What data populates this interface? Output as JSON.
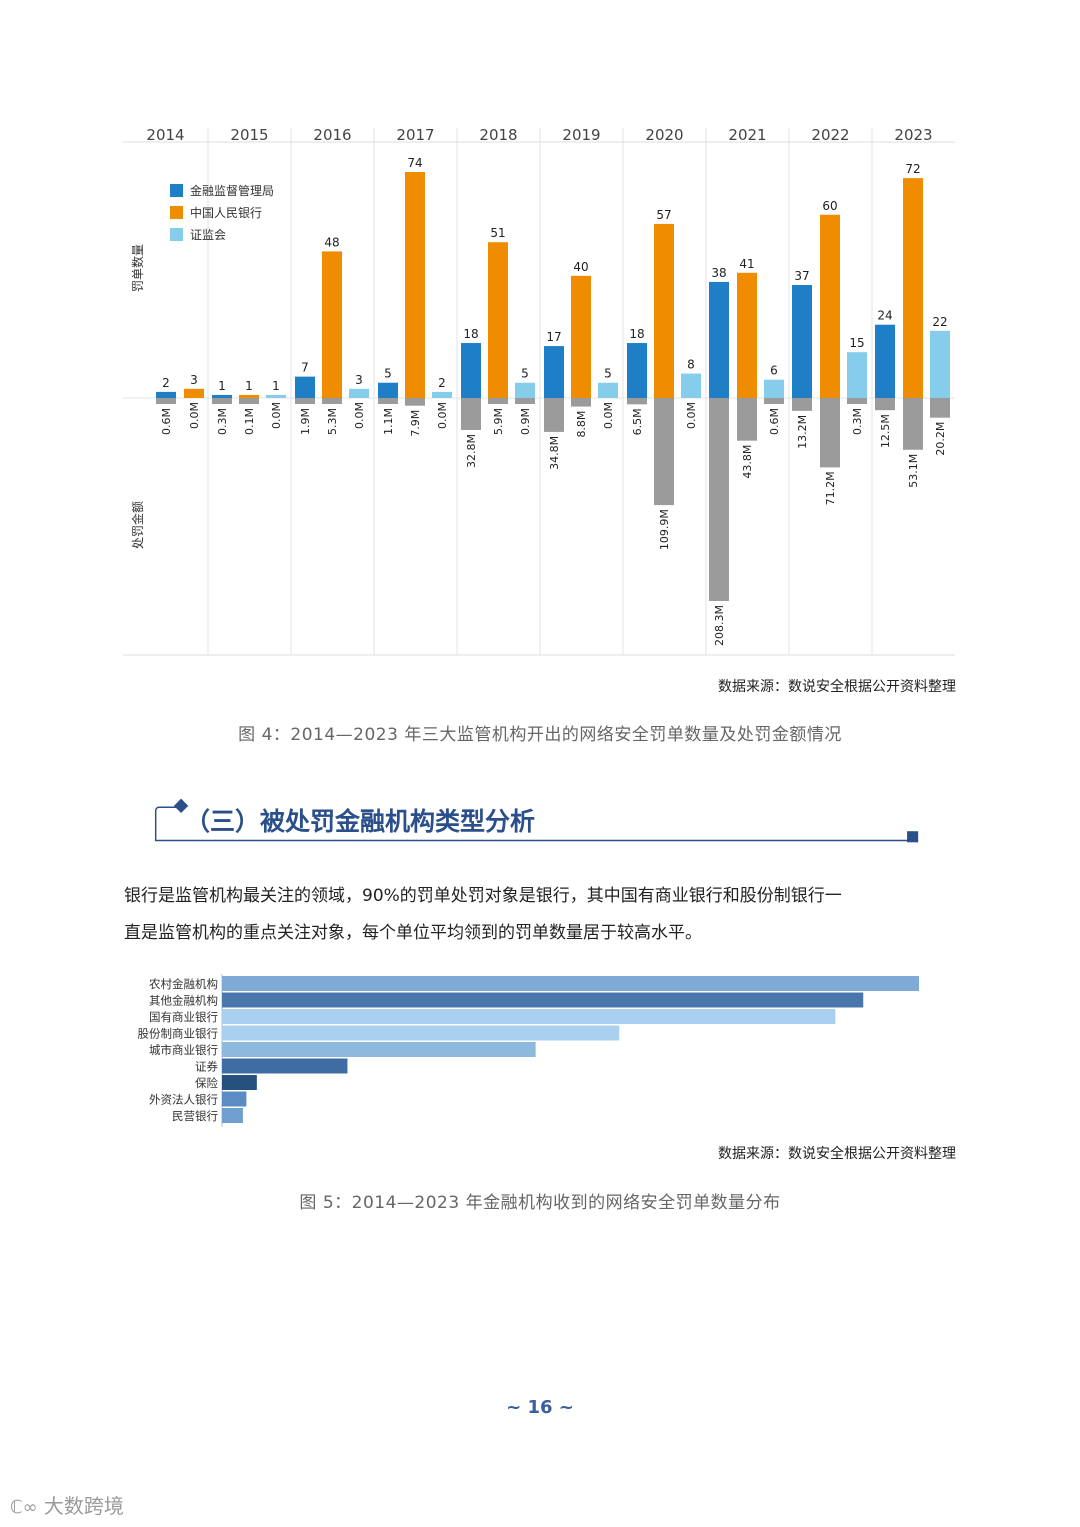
{
  "chart_data": [
    {
      "type": "bar",
      "categories": [
        "2014",
        "2015",
        "2016",
        "2017",
        "2018",
        "2019",
        "2020",
        "2021",
        "2022",
        "2023"
      ],
      "series": [
        {
          "name": "金融监督管理局",
          "color": "#1f7fc6",
          "values": [
            2,
            1,
            7,
            5,
            18,
            17,
            18,
            38,
            37,
            24
          ],
          "amounts": [
            "0.6M",
            "0.3M",
            "1.9M",
            "1.1M",
            "32.8M",
            "34.8M",
            "6.5M",
            "208.3M",
            "13.2M",
            "12.5M"
          ],
          "amount_values": [
            0.6,
            0.3,
            1.9,
            1.1,
            32.8,
            34.8,
            6.5,
            208.3,
            13.2,
            12.5
          ]
        },
        {
          "name": "中国人民银行",
          "color": "#f08c00",
          "values": [
            3,
            1,
            48,
            74,
            51,
            40,
            57,
            41,
            60,
            72
          ],
          "amounts": [
            "0.0M",
            "0.1M",
            "5.3M",
            "7.9M",
            "5.9M",
            "8.8M",
            "109.9M",
            "43.8M",
            "71.2M",
            "53.1M"
          ],
          "amount_values": [
            0.0,
            0.1,
            5.3,
            7.9,
            5.9,
            8.8,
            109.9,
            43.8,
            71.2,
            53.1
          ]
        },
        {
          "name": "证监会",
          "color": "#86cdec",
          "values": [
            null,
            1,
            3,
            2,
            5,
            5,
            8,
            6,
            15,
            22
          ],
          "amounts": [
            null,
            "0.0M",
            "0.0M",
            "0.0M",
            "0.9M",
            "0.0M",
            "0.0M",
            "0.6M",
            "0.3M",
            "20.2M"
          ],
          "amount_values": [
            null,
            0.0,
            0.0,
            0.0,
            0.9,
            0.0,
            0.0,
            0.6,
            0.3,
            20.2
          ]
        }
      ],
      "ylabel_top": "罚单数量",
      "ylabel_bottom": "处罚金额",
      "legend_position": "top-left",
      "amount_bar_color": "#9b9b9b"
    },
    {
      "type": "bar",
      "orientation": "horizontal",
      "categories": [
        "农村金融机构",
        "其他金融机构",
        "国有商业银行",
        "股份制商业银行",
        "城市商业银行",
        "证券",
        "保险",
        "外资法人银行",
        "民营银行"
      ],
      "values": [
        100,
        92,
        88,
        57,
        45,
        18,
        5,
        3.5,
        3
      ],
      "colors": [
        "#7faad5",
        "#4a77ab",
        "#a9d0ef",
        "#a9d0ef",
        "#8fb8de",
        "#3f6da3",
        "#26517f",
        "#5b8cc3",
        "#6f9fd0"
      ]
    }
  ],
  "source1": "数据来源：数说安全根据公开资料整理",
  "caption1": "图 4：2014—2023 年三大监管机构开出的网络安全罚单数量及处罚金额情况",
  "section_title": "（三）被处罚金融机构类型分析",
  "paragraph_line1": "银行是监管机构最关注的领域，90%的罚单处罚对象是银行，其中国有商业银行和股份制银行一",
  "paragraph_line2": "直是监管机构的重点关注对象，每个单位平均领到的罚单数量居于较高水平。",
  "source2": "数据来源：数说安全根据公开资料整理",
  "caption2": "图 5：2014—2023 年金融机构收到的网络安全罚单数量分布",
  "page_number": "~ 16 ~",
  "watermark_brand": "大数跨境",
  "accent_color": "#2b4f8a"
}
